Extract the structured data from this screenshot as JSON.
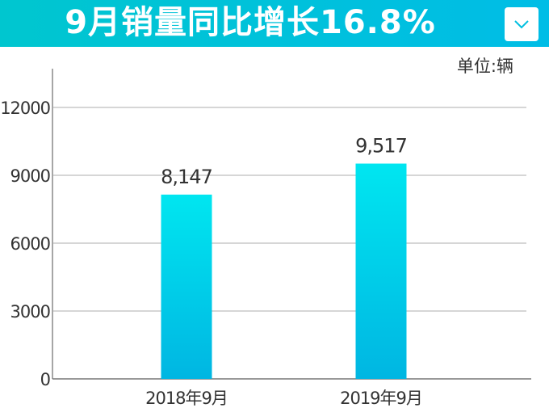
{
  "header": {
    "title": "9月销量同比增长16.8%",
    "dropdown_icon": "chevron-down-icon"
  },
  "chart_data": {
    "type": "bar",
    "title": "9月销量同比增长16.8%",
    "unit_label": "单位:辆",
    "categories": [
      "2018年9月",
      "2019年9月"
    ],
    "values": [
      8147,
      9517
    ],
    "data_labels": [
      "8,147",
      "9,517"
    ],
    "ylim": [
      0,
      12000
    ],
    "yticks": [
      0,
      3000,
      6000,
      9000,
      12000
    ],
    "ytick_labels": [
      "0",
      "3000",
      "6000",
      "9000",
      "12000"
    ],
    "grid": true,
    "colors": {
      "bar_top": "#00e6f0",
      "bar_bottom": "#00b6e2",
      "header": "#00c2d8"
    }
  }
}
